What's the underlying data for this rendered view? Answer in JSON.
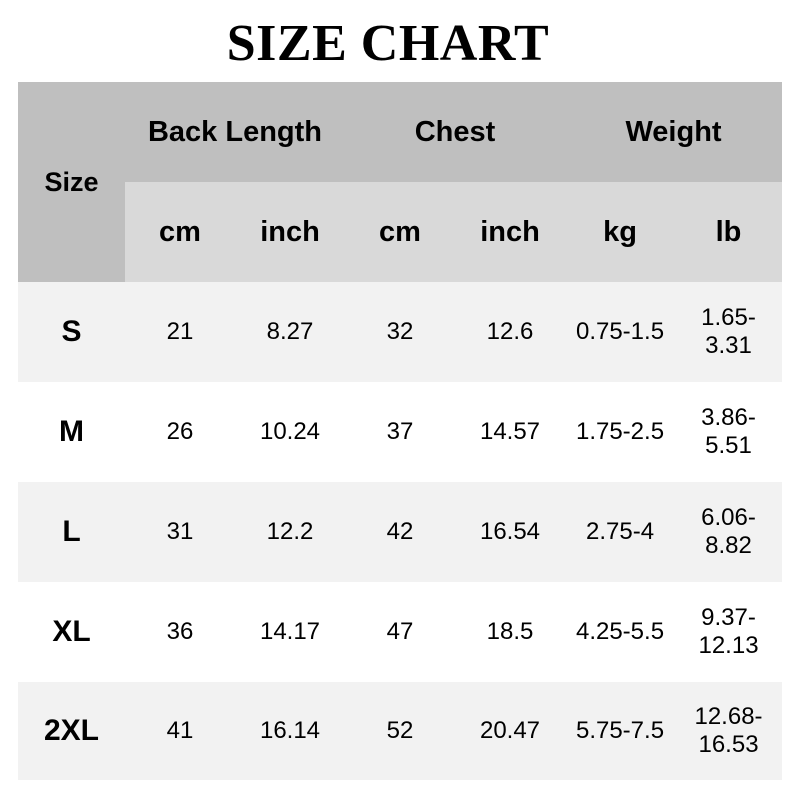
{
  "title": "SIZE CHART",
  "header": {
    "size": "Size",
    "groups": [
      "Back Length",
      "Chest",
      "Weight"
    ],
    "units": [
      "cm",
      "inch",
      "cm",
      "inch",
      "kg",
      "lb"
    ]
  },
  "rows": [
    {
      "size": "S",
      "values": [
        "21",
        "8.27",
        "32",
        "12.6",
        "0.75-1.5",
        "1.65-\n3.31"
      ]
    },
    {
      "size": "M",
      "values": [
        "26",
        "10.24",
        "37",
        "14.57",
        "1.75-2.5",
        "3.86-\n5.51"
      ]
    },
    {
      "size": "L",
      "values": [
        "31",
        "12.2",
        "42",
        "16.54",
        "2.75-4",
        "6.06-\n8.82"
      ]
    },
    {
      "size": "XL",
      "values": [
        "36",
        "14.17",
        "47",
        "18.5",
        "4.25-5.5",
        "9.37-\n12.13"
      ]
    },
    {
      "size": "2XL",
      "values": [
        "41",
        "16.14",
        "52",
        "20.47",
        "5.75-7.5",
        "12.68-\n16.53"
      ]
    }
  ]
}
